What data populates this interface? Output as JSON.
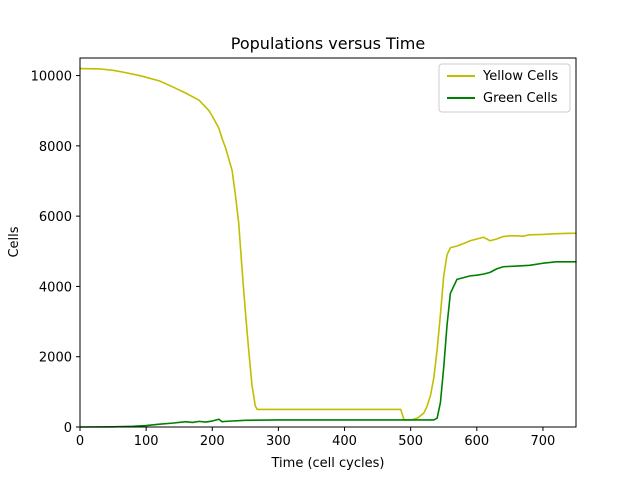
{
  "chart_data": {
    "type": "line",
    "title": "Populations versus Time",
    "xlabel": "Time (cell cycles)",
    "ylabel": "Cells",
    "xlim": [
      0,
      750
    ],
    "ylim": [
      0,
      10500
    ],
    "xticks": [
      0,
      100,
      200,
      300,
      400,
      500,
      600,
      700
    ],
    "yticks": [
      0,
      2000,
      4000,
      6000,
      8000,
      10000
    ],
    "grid": false,
    "legend_position": "top-right",
    "series": [
      {
        "name": "Yellow Cells",
        "color": "#bfbf00",
        "x": [
          0,
          30,
          50,
          70,
          90,
          100,
          120,
          140,
          160,
          180,
          195,
          200,
          210,
          215,
          220,
          230,
          235,
          240,
          245,
          250,
          255,
          260,
          265,
          268,
          300,
          400,
          485,
          490,
          500,
          510,
          520,
          525,
          530,
          535,
          540,
          545,
          550,
          555,
          560,
          570,
          580,
          590,
          600,
          610,
          620,
          630,
          640,
          650,
          660,
          670,
          680,
          700,
          720,
          740,
          750
        ],
        "y": [
          10200,
          10190,
          10150,
          10080,
          10000,
          9950,
          9850,
          9680,
          9500,
          9300,
          9000,
          8850,
          8500,
          8200,
          7950,
          7300,
          6600,
          5800,
          4500,
          3300,
          2200,
          1200,
          600,
          500,
          500,
          500,
          500,
          200,
          200,
          250,
          400,
          600,
          900,
          1400,
          2200,
          3200,
          4300,
          4900,
          5100,
          5150,
          5220,
          5300,
          5350,
          5400,
          5300,
          5350,
          5420,
          5440,
          5440,
          5430,
          5470,
          5480,
          5500,
          5510,
          5510
        ]
      },
      {
        "name": "Green Cells",
        "color": "#008000",
        "x": [
          0,
          50,
          80,
          100,
          120,
          140,
          160,
          170,
          180,
          190,
          200,
          210,
          215,
          220,
          250,
          300,
          400,
          500,
          535,
          540,
          545,
          550,
          555,
          560,
          570,
          580,
          590,
          600,
          610,
          620,
          630,
          640,
          660,
          680,
          700,
          720,
          750
        ],
        "y": [
          0,
          5,
          20,
          40,
          80,
          110,
          150,
          130,
          160,
          140,
          170,
          220,
          150,
          160,
          190,
          200,
          200,
          200,
          200,
          250,
          700,
          1700,
          2900,
          3800,
          4200,
          4250,
          4300,
          4320,
          4350,
          4400,
          4500,
          4560,
          4580,
          4600,
          4660,
          4700,
          4700
        ]
      }
    ]
  }
}
